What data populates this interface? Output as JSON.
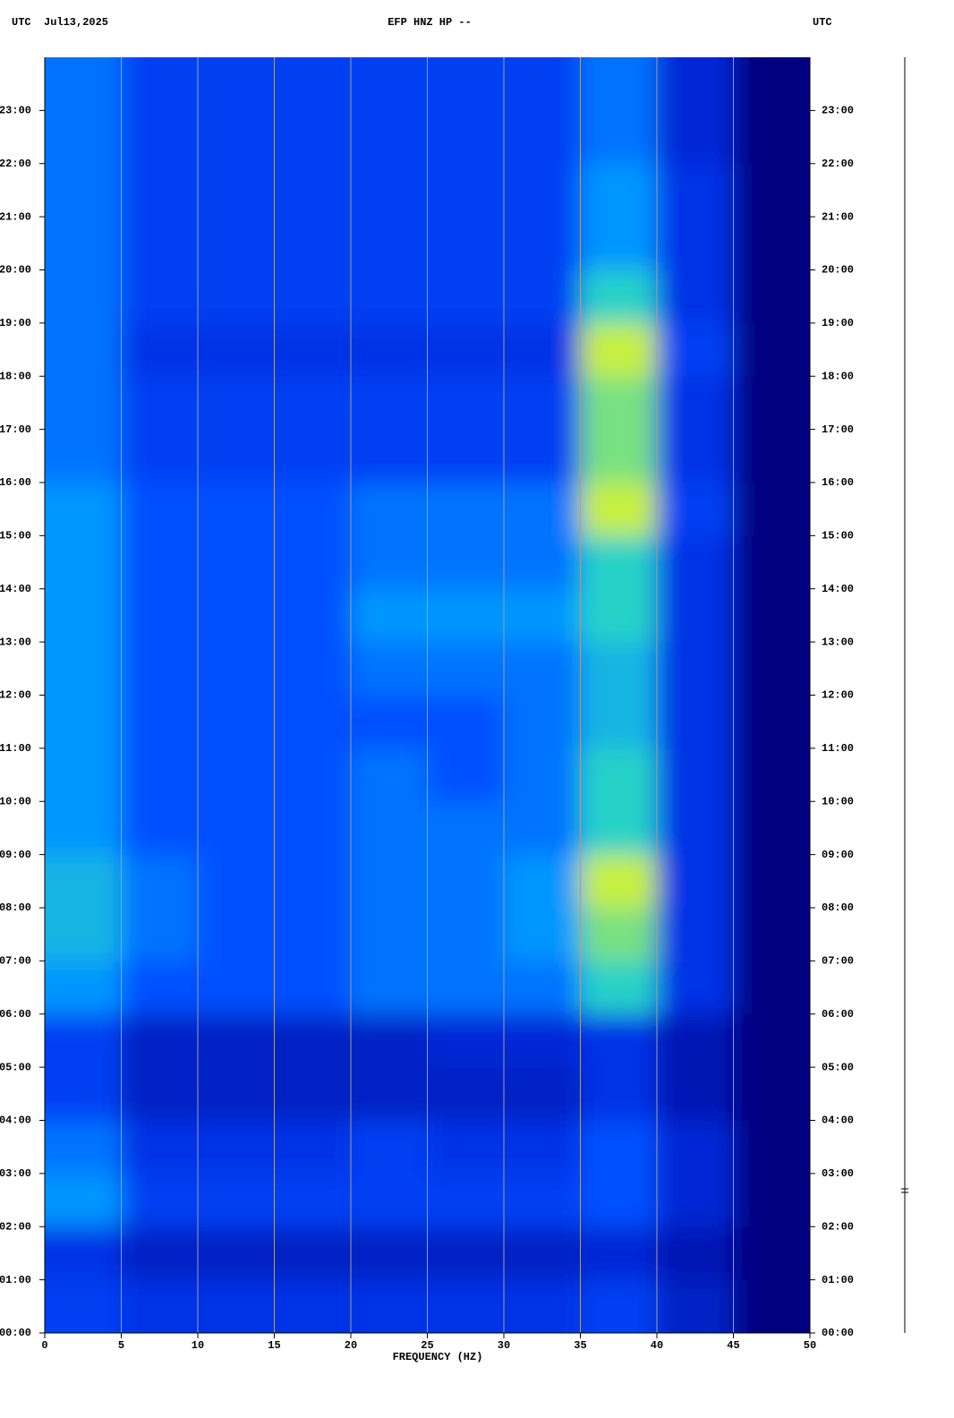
{
  "chart_data": {
    "type": "heatmap",
    "title": "EFP HNZ HP --",
    "left_label": "UTC",
    "date": "Jul13,2025",
    "right_label": "UTC",
    "x_label": "FREQUENCY (HZ)",
    "xlim": [
      0,
      50
    ],
    "ylim": [
      0,
      24
    ],
    "grid": true,
    "xbins": [
      0,
      5,
      10,
      15,
      20,
      25,
      30,
      35,
      40,
      45,
      50
    ],
    "ybins": [
      0,
      1,
      2,
      3,
      4,
      5,
      6,
      7,
      8,
      9,
      10,
      11,
      12,
      13,
      14,
      15,
      16,
      17,
      18,
      19,
      20,
      21,
      22,
      23,
      24
    ],
    "xticks": [
      0,
      5,
      10,
      15,
      20,
      25,
      30,
      35,
      40,
      45,
      50
    ],
    "yticks": [
      {
        "value": 0,
        "label": "00:00"
      },
      {
        "value": 1,
        "label": "01:00"
      },
      {
        "value": 2,
        "label": "02:00"
      },
      {
        "value": 3,
        "label": "03:00"
      },
      {
        "value": 4,
        "label": "04:00"
      },
      {
        "value": 5,
        "label": "05:00"
      },
      {
        "value": 6,
        "label": "06:00"
      },
      {
        "value": 7,
        "label": "07:00"
      },
      {
        "value": 8,
        "label": "08:00"
      },
      {
        "value": 9,
        "label": "09:00"
      },
      {
        "value": 10,
        "label": "10:00"
      },
      {
        "value": 11,
        "label": "11:00"
      },
      {
        "value": 12,
        "label": "12:00"
      },
      {
        "value": 13,
        "label": "13:00"
      },
      {
        "value": 14,
        "label": "14:00"
      },
      {
        "value": 15,
        "label": "15:00"
      },
      {
        "value": 16,
        "label": "16:00"
      },
      {
        "value": 17,
        "label": "17:00"
      },
      {
        "value": 18,
        "label": "18:00"
      },
      {
        "value": 19,
        "label": "19:00"
      },
      {
        "value": 20,
        "label": "20:00"
      },
      {
        "value": 21,
        "label": "21:00"
      },
      {
        "value": 22,
        "label": "22:00"
      },
      {
        "value": 23,
        "label": "23:00"
      }
    ],
    "values": [
      [
        0.35,
        0.3,
        0.3,
        0.3,
        0.3,
        0.3,
        0.3,
        0.35,
        0.2,
        0
      ],
      [
        0.3,
        0.2,
        0.2,
        0.2,
        0.2,
        0.2,
        0.2,
        0.25,
        0.15,
        0
      ],
      [
        0.5,
        0.35,
        0.35,
        0.35,
        0.35,
        0.35,
        0.35,
        0.4,
        0.25,
        0
      ],
      [
        0.45,
        0.3,
        0.3,
        0.3,
        0.35,
        0.3,
        0.3,
        0.4,
        0.25,
        0
      ],
      [
        0.35,
        0.2,
        0.2,
        0.2,
        0.2,
        0.2,
        0.2,
        0.3,
        0.15,
        0
      ],
      [
        0.35,
        0.2,
        0.2,
        0.2,
        0.2,
        0.25,
        0.25,
        0.3,
        0.15,
        0
      ],
      [
        0.5,
        0.4,
        0.4,
        0.4,
        0.45,
        0.45,
        0.45,
        0.6,
        0.3,
        0
      ],
      [
        0.55,
        0.45,
        0.4,
        0.4,
        0.45,
        0.45,
        0.5,
        0.65,
        0.3,
        0
      ],
      [
        0.55,
        0.45,
        0.4,
        0.4,
        0.45,
        0.45,
        0.5,
        0.7,
        0.3,
        0
      ],
      [
        0.5,
        0.4,
        0.4,
        0.4,
        0.45,
        0.45,
        0.45,
        0.6,
        0.3,
        0
      ],
      [
        0.5,
        0.4,
        0.4,
        0.4,
        0.45,
        0.4,
        0.45,
        0.6,
        0.3,
        0
      ],
      [
        0.5,
        0.4,
        0.4,
        0.4,
        0.4,
        0.4,
        0.45,
        0.55,
        0.3,
        0
      ],
      [
        0.5,
        0.4,
        0.4,
        0.4,
        0.45,
        0.45,
        0.45,
        0.55,
        0.3,
        0
      ],
      [
        0.5,
        0.4,
        0.4,
        0.4,
        0.5,
        0.5,
        0.5,
        0.6,
        0.3,
        0
      ],
      [
        0.5,
        0.4,
        0.4,
        0.4,
        0.45,
        0.45,
        0.45,
        0.6,
        0.3,
        0
      ],
      [
        0.5,
        0.4,
        0.4,
        0.4,
        0.45,
        0.45,
        0.45,
        0.7,
        0.35,
        0
      ],
      [
        0.45,
        0.35,
        0.35,
        0.35,
        0.35,
        0.35,
        0.35,
        0.65,
        0.3,
        0
      ],
      [
        0.45,
        0.35,
        0.35,
        0.35,
        0.35,
        0.35,
        0.35,
        0.65,
        0.3,
        0
      ],
      [
        0.45,
        0.3,
        0.3,
        0.3,
        0.3,
        0.3,
        0.3,
        0.7,
        0.35,
        0
      ],
      [
        0.45,
        0.35,
        0.35,
        0.35,
        0.35,
        0.35,
        0.35,
        0.6,
        0.3,
        0
      ],
      [
        0.45,
        0.35,
        0.35,
        0.35,
        0.35,
        0.35,
        0.35,
        0.5,
        0.3,
        0
      ],
      [
        0.45,
        0.35,
        0.35,
        0.35,
        0.35,
        0.35,
        0.35,
        0.5,
        0.3,
        0
      ],
      [
        0.45,
        0.35,
        0.35,
        0.35,
        0.35,
        0.35,
        0.35,
        0.45,
        0.25,
        0
      ],
      [
        0.45,
        0.35,
        0.35,
        0.35,
        0.35,
        0.35,
        0.35,
        0.45,
        0.25,
        0
      ]
    ]
  }
}
